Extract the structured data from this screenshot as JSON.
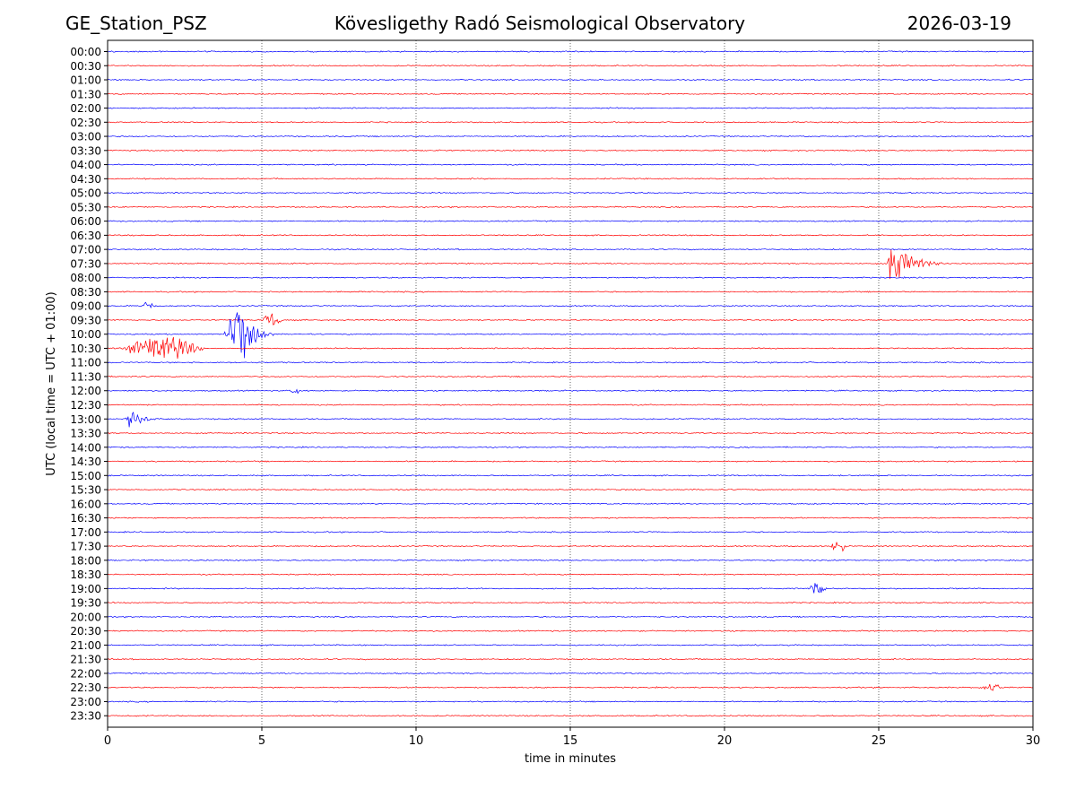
{
  "header": {
    "station": "GE_Station_PSZ",
    "observatory": "Kövesligethy Radó Seismological Observatory",
    "date": "2026-03-19"
  },
  "chart_data": {
    "type": "line",
    "title": "Kövesligethy Radó Seismological Observatory",
    "xlabel": "time in minutes",
    "ylabel": "UTC (local time = UTC + 01:00)",
    "xlim": [
      0,
      30
    ],
    "x_ticks": [
      0,
      5,
      10,
      15,
      20,
      25,
      30
    ],
    "grid": "vertical dotted lines at 5-minute intervals",
    "series_colors": [
      "#0000ff",
      "#ff0000"
    ],
    "color_rule": "full-hour rows blue, half-hour rows red",
    "rows": [
      "00:00",
      "00:30",
      "01:00",
      "01:30",
      "02:00",
      "02:30",
      "03:00",
      "03:30",
      "04:00",
      "04:30",
      "05:00",
      "05:30",
      "06:00",
      "06:30",
      "07:00",
      "07:30",
      "08:00",
      "08:30",
      "09:00",
      "09:30",
      "10:00",
      "10:30",
      "11:00",
      "11:30",
      "12:00",
      "12:30",
      "13:00",
      "13:30",
      "14:00",
      "14:30",
      "15:00",
      "15:30",
      "16:00",
      "16:30",
      "17:00",
      "17:30",
      "18:00",
      "18:30",
      "19:00",
      "19:30",
      "20:00",
      "20:30",
      "21:00",
      "21:30",
      "22:00",
      "22:30",
      "23:00",
      "23:30"
    ],
    "events": [
      {
        "row": "07:30",
        "onset_min": 25.3,
        "duration_min": 2.5,
        "peak_rel": 0.95,
        "kind": "spike"
      },
      {
        "row": "09:00",
        "onset_min": 1.1,
        "duration_min": 0.4,
        "peak_rel": 0.15,
        "kind": "burst"
      },
      {
        "row": "09:30",
        "onset_min": 5.0,
        "duration_min": 0.7,
        "peak_rel": 0.2,
        "kind": "burst"
      },
      {
        "row": "10:00",
        "onset_min": 3.8,
        "duration_min": 1.6,
        "peak_rel": 1.0,
        "kind": "quake"
      },
      {
        "row": "10:30",
        "onset_min": 0.4,
        "duration_min": 2.8,
        "peak_rel": 0.35,
        "kind": "burst"
      },
      {
        "row": "12:00",
        "onset_min": 5.9,
        "duration_min": 0.5,
        "peak_rel": 0.1,
        "kind": "burst"
      },
      {
        "row": "13:00",
        "onset_min": 0.6,
        "duration_min": 1.8,
        "peak_rel": 0.4,
        "kind": "spike"
      },
      {
        "row": "17:30",
        "onset_min": 23.4,
        "duration_min": 0.6,
        "peak_rel": 0.15,
        "kind": "burst"
      },
      {
        "row": "19:00",
        "onset_min": 22.7,
        "duration_min": 0.6,
        "peak_rel": 0.2,
        "kind": "burst"
      },
      {
        "row": "22:30",
        "onset_min": 28.2,
        "duration_min": 0.9,
        "peak_rel": 0.1,
        "kind": "burst"
      }
    ]
  }
}
